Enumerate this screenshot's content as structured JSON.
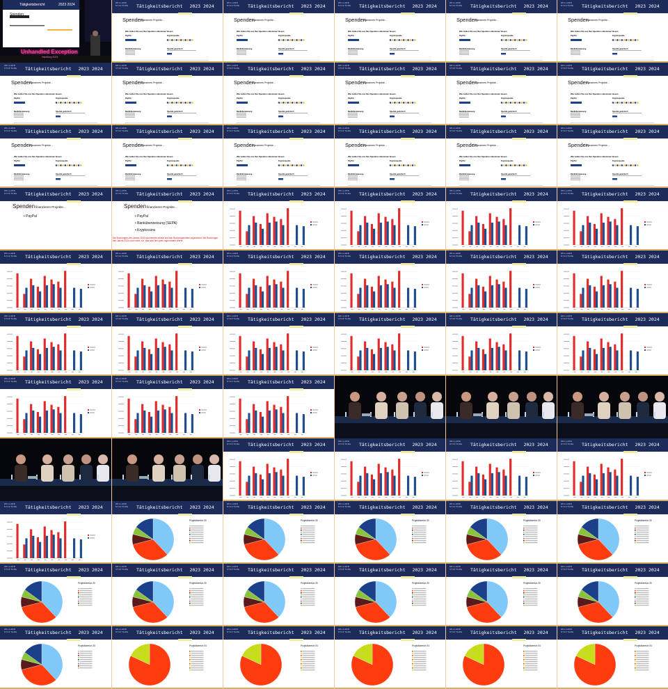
{
  "grid": {
    "columns": 6,
    "rows": 11
  },
  "header": {
    "logo_text": "HOLLAND STIFTUNG",
    "title": "Tätigkeitsbericht",
    "years": "2023 2024"
  },
  "conference": {
    "logo_text": "Unhandled Exception",
    "city": "Hamburg 2024"
  },
  "spenden": {
    "title": "Spenden",
    "subtitle": "finanzieren Projekte...",
    "question": "Wie wollen Sie uns Ihre Spenden zukommen lassen",
    "paypal": "PayPal",
    "krypto": "Kryptospende",
    "bank": "Banküberweisung",
    "sicher": "Spende gesichert!"
  },
  "bullets": [
    "PayPal",
    "Banküberweisung (SEPA)",
    "Kryptocoins"
  ],
  "note": "Die Buchungen des Jahres 2023 sind bereits erfasst und den Buchungskonten zugeordnet. Bei Buchungen des Jahres 2024 noch nicht, d.h. das sind hier grob zugeordnete Werte.",
  "chart_data": [
    {
      "type": "bar",
      "categories": [
        "1",
        "2",
        "3",
        "4",
        "5",
        "6",
        "7",
        "8",
        "9",
        "10"
      ],
      "series": [
        {
          "name": "",
          "values": [
            95,
            38,
            80,
            58,
            88,
            78,
            72,
            102,
            0,
            0
          ]
        },
        {
          "name": "",
          "values": [
            0,
            55,
            62,
            45,
            62,
            65,
            55,
            0,
            55,
            52
          ]
        }
      ],
      "ylim": [
        0,
        110
      ]
    },
    {
      "type": "pie",
      "title": "Projektbereich 30",
      "values": [
        38,
        33,
        8,
        6,
        15
      ],
      "colors": [
        "#7fc8f8",
        "#ff3b10",
        "#5a1a1a",
        "#8ac43f",
        "#1c3f8a"
      ]
    },
    {
      "type": "pie",
      "title": "Projektbereich 04",
      "values": [
        82,
        18
      ],
      "colors": [
        "#ff3b10",
        "#c7dc1b"
      ]
    }
  ],
  "colors": {
    "header": "#1c2b5a",
    "accent": "#f1e9a6",
    "bar_red": "#e12a2a",
    "bar_blue": "#1f4e8c",
    "note_red": "#e01010"
  },
  "sequence": [
    "talk",
    "spenden",
    "spenden",
    "spenden",
    "spenden",
    "spenden",
    "spenden",
    "spenden",
    "spenden",
    "spenden",
    "spenden",
    "spenden",
    "spenden",
    "spenden",
    "spenden",
    "spenden",
    "spenden",
    "spenden",
    "bullets1",
    "bullets3",
    "bar",
    "bar",
    "bar",
    "bar",
    "bar",
    "bar",
    "bar",
    "bar",
    "bar",
    "bar",
    "bar",
    "bar",
    "bar",
    "bar",
    "bar",
    "bar",
    "bar",
    "bar",
    "bar",
    "panel",
    "panel",
    "panel",
    "panel",
    "panel",
    "bar",
    "bar",
    "bar",
    "bar",
    "bar",
    "pie30",
    "pie30",
    "pie30",
    "pie30",
    "pie30",
    "pie30",
    "pie30",
    "pie30",
    "pie30",
    "pie30",
    "pie30",
    "pie30",
    "pie04",
    "pie04",
    "pie04",
    "pie04",
    "pie04"
  ]
}
